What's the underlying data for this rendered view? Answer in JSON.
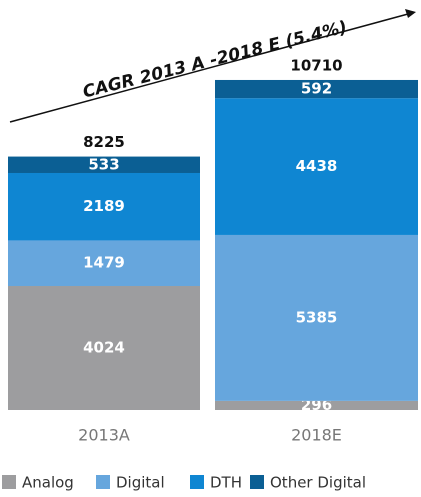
{
  "chart_data": {
    "type": "stacked_bar",
    "annotation": "CAGR 2013 A -2018 E (5.4%)",
    "categories": [
      "2013A",
      "2018E"
    ],
    "totals": [
      8225,
      10710
    ],
    "series": [
      {
        "name": "Analog",
        "color": "#9d9d9f",
        "values": [
          4024,
          296
        ]
      },
      {
        "name": "Digital",
        "color": "#66a6dd",
        "values": [
          1479,
          5385
        ]
      },
      {
        "name": "DTH",
        "color": "#0f86d2",
        "values": [
          2189,
          4438
        ]
      },
      {
        "name": "Other Digital",
        "color": "#0b5f94",
        "values": [
          533,
          592
        ]
      }
    ]
  }
}
